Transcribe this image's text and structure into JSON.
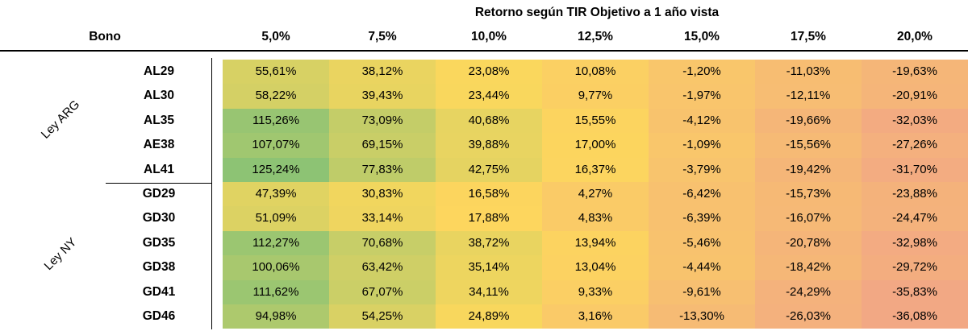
{
  "chart_data": {
    "type": "heatmap",
    "title": "Retorno según TIR Objetivo a 1 año vista",
    "row_header": "Bono",
    "columns": [
      "5,0%",
      "7,5%",
      "10,0%",
      "12,5%",
      "15,0%",
      "17,5%",
      "20,0%"
    ],
    "groups": [
      {
        "name": "Ley ARG",
        "rows": [
          {
            "bono": "AL29",
            "values": [
              "55,61%",
              "38,12%",
              "23,08%",
              "10,08%",
              "-1,20%",
              "-11,03%",
              "-19,63%"
            ]
          },
          {
            "bono": "AL30",
            "values": [
              "58,22%",
              "39,43%",
              "23,44%",
              "9,77%",
              "-1,97%",
              "-12,11%",
              "-20,91%"
            ]
          },
          {
            "bono": "AL35",
            "values": [
              "115,26%",
              "73,09%",
              "40,68%",
              "15,55%",
              "-4,12%",
              "-19,66%",
              "-32,03%"
            ]
          },
          {
            "bono": "AE38",
            "values": [
              "107,07%",
              "69,15%",
              "39,88%",
              "17,00%",
              "-1,09%",
              "-15,56%",
              "-27,26%"
            ]
          },
          {
            "bono": "AL41",
            "values": [
              "125,24%",
              "77,83%",
              "42,75%",
              "16,37%",
              "-3,79%",
              "-19,42%",
              "-31,70%"
            ]
          }
        ]
      },
      {
        "name": "Ley NY",
        "rows": [
          {
            "bono": "GD29",
            "values": [
              "47,39%",
              "30,83%",
              "16,58%",
              "4,27%",
              "-6,42%",
              "-15,73%",
              "-23,88%"
            ]
          },
          {
            "bono": "GD30",
            "values": [
              "51,09%",
              "33,14%",
              "17,88%",
              "4,83%",
              "-6,39%",
              "-16,07%",
              "-24,47%"
            ]
          },
          {
            "bono": "GD35",
            "values": [
              "112,27%",
              "70,68%",
              "38,72%",
              "13,94%",
              "-5,46%",
              "-20,78%",
              "-32,98%"
            ]
          },
          {
            "bono": "GD38",
            "values": [
              "100,06%",
              "63,42%",
              "35,14%",
              "13,04%",
              "-4,44%",
              "-18,42%",
              "-29,72%"
            ]
          },
          {
            "bono": "GD41",
            "values": [
              "111,62%",
              "67,07%",
              "34,11%",
              "9,33%",
              "-9,61%",
              "-24,29%",
              "-35,83%"
            ]
          },
          {
            "bono": "GD46",
            "values": [
              "94,98%",
              "54,25%",
              "24,89%",
              "3,16%",
              "-13,30%",
              "-26,03%",
              "-36,08%"
            ]
          }
        ]
      }
    ],
    "color_scale": {
      "low": "#f2a884",
      "mid": "#fdd85c",
      "high": "#8dc374"
    }
  }
}
